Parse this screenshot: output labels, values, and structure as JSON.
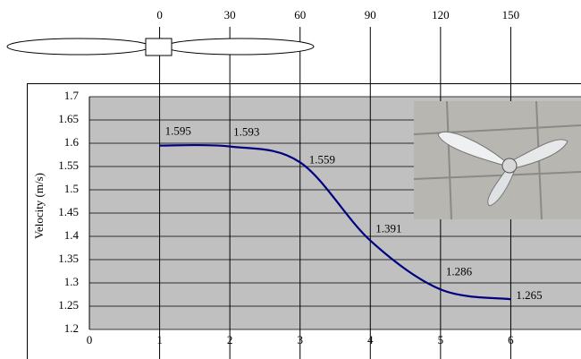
{
  "chart_data": {
    "type": "line",
    "y_label": "Velocity (m/s)",
    "x": [
      1,
      2,
      3,
      4,
      5,
      6
    ],
    "values": [
      1.595,
      1.593,
      1.559,
      1.391,
      1.286,
      1.265
    ],
    "color": "#000080",
    "xlim": [
      0,
      7
    ],
    "xticks": [
      0,
      1,
      2,
      3,
      4,
      5,
      6
    ],
    "x2lim": [
      -30,
      180
    ],
    "x2ticks": [
      0,
      30,
      60,
      90,
      120,
      150
    ],
    "ylim": [
      1.2,
      1.7
    ],
    "yticks": [
      1.2,
      1.25,
      1.3,
      1.35,
      1.4,
      1.45,
      1.5,
      1.55,
      1.6,
      1.65,
      1.7
    ],
    "grid": true
  }
}
